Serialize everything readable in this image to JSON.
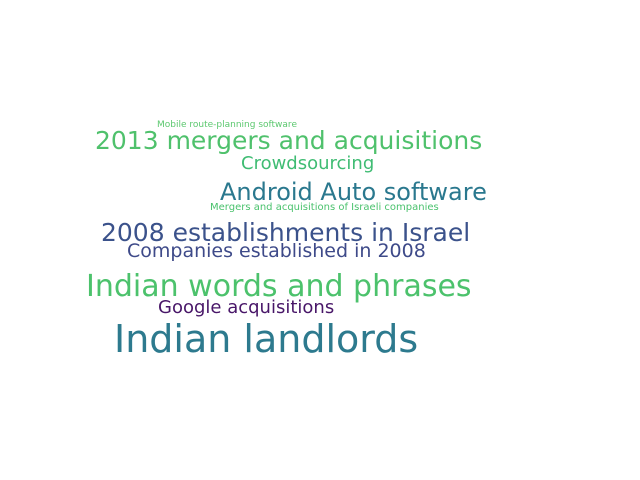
{
  "words": [
    {
      "text": "Mobile route-planning software",
      "color": "#5cc86f"
    },
    {
      "text": "2013 mergers and acquisitions",
      "color": "#4fc16c"
    },
    {
      "text": "Crowdsourcing",
      "color": "#3fbc73"
    },
    {
      "text": "Android Auto software",
      "color": "#2a788e"
    },
    {
      "text": "Mergers and acquisitions of Israeli companies",
      "color": "#4ac26d"
    },
    {
      "text": "2008 establishments in Israel",
      "color": "#3b528b"
    },
    {
      "text": "Companies established in 2008",
      "color": "#3e4a89"
    },
    {
      "text": "Indian words and phrases",
      "color": "#4cc26c"
    },
    {
      "text": "Google acquisitions",
      "color": "#481668"
    },
    {
      "text": "Indian landlords",
      "color": "#2d7a8e"
    }
  ]
}
